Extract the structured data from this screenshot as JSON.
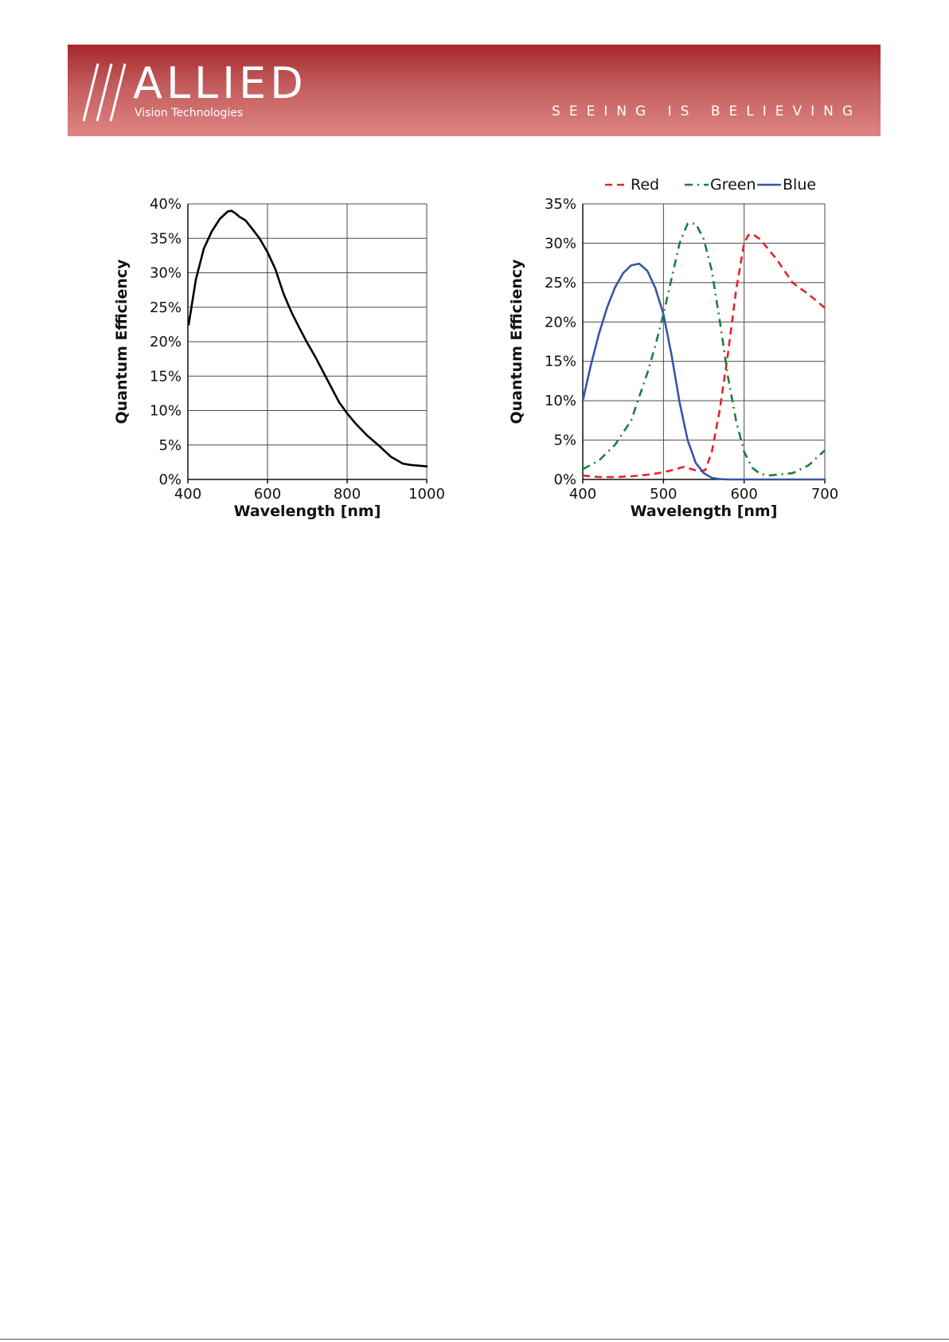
{
  "header": {
    "brand": "ALLIED",
    "brand_sub": "Vision Technologies",
    "tagline": "SEEING IS BELIEVING",
    "colors": {
      "top": "#a6282a",
      "bottom": "#de8583"
    }
  },
  "chart_data": [
    {
      "type": "line",
      "title": "",
      "xlabel": "Wavelength [nm]",
      "ylabel": "Quantum Efficiency",
      "xlim": [
        400,
        1000
      ],
      "ylim": [
        0,
        40
      ],
      "xticks": [
        "400",
        "600",
        "800",
        "1000"
      ],
      "yticks": [
        "0%",
        "5%",
        "10%",
        "15%",
        "20%",
        "25%",
        "30%",
        "35%",
        "40%"
      ],
      "grid": true,
      "series": [
        {
          "color": "#000000",
          "dash": "solid",
          "x": [
            402,
            420,
            440,
            460,
            480,
            500,
            510,
            520,
            530,
            545,
            560,
            580,
            600,
            620,
            640,
            660,
            680,
            700,
            720,
            750,
            780,
            800,
            820,
            850,
            880,
            910,
            940,
            960,
            980,
            1000
          ],
          "y": [
            22.5,
            29,
            33.5,
            36,
            37.8,
            38.9,
            39,
            38.6,
            38.1,
            37.6,
            36.5,
            35,
            33,
            30.5,
            27,
            24.3,
            22,
            19.8,
            17.8,
            14.5,
            11.2,
            9.6,
            8.2,
            6.4,
            4.9,
            3.3,
            2.3,
            2.1,
            2.0,
            1.9
          ]
        }
      ]
    },
    {
      "type": "line",
      "title": "",
      "xlabel": "Wavelength [nm]",
      "ylabel": "Quantum Efficiency",
      "xlim": [
        400,
        700
      ],
      "ylim": [
        0,
        35
      ],
      "xticks": [
        "400",
        "500",
        "600",
        "700"
      ],
      "yticks": [
        "0%",
        "5%",
        "10%",
        "15%",
        "20%",
        "25%",
        "30%",
        "35%"
      ],
      "grid": true,
      "legend": "top",
      "series": [
        {
          "name": "Red",
          "color": "#e8222b",
          "dash": "dash",
          "x": [
            400,
            420,
            440,
            460,
            480,
            500,
            515,
            525,
            535,
            545,
            552,
            560,
            570,
            580,
            590,
            600,
            605,
            610,
            620,
            640,
            660,
            680,
            700
          ],
          "y": [
            0.5,
            0.3,
            0.3,
            0.4,
            0.6,
            0.9,
            1.3,
            1.6,
            1.3,
            1.0,
            1.2,
            3.5,
            9,
            16,
            24,
            30,
            31,
            31.2,
            30.5,
            28,
            25,
            23.5,
            21.8
          ]
        },
        {
          "name": "Green",
          "color": "#1b7f3b",
          "dash": "dashdot",
          "x": [
            400,
            420,
            440,
            460,
            470,
            480,
            490,
            500,
            510,
            520,
            530,
            540,
            550,
            560,
            570,
            580,
            590,
            600,
            610,
            620,
            630,
            640,
            660,
            680,
            700
          ],
          "y": [
            1.3,
            2.4,
            4.4,
            7.5,
            10.5,
            13.5,
            17,
            21,
            25.5,
            30,
            32.5,
            32.5,
            30.5,
            26.5,
            20,
            13,
            7.5,
            3.5,
            1.5,
            0.7,
            0.5,
            0.6,
            0.8,
            1.8,
            3.7
          ]
        },
        {
          "name": "Blue",
          "color": "#3a54a7",
          "dash": "solid",
          "x": [
            400,
            410,
            420,
            430,
            440,
            450,
            460,
            470,
            480,
            490,
            500,
            510,
            520,
            530,
            540,
            550,
            560,
            570,
            580,
            600,
            650,
            700
          ],
          "y": [
            10,
            14.5,
            18.5,
            21.8,
            24.4,
            26.2,
            27.2,
            27.4,
            26.5,
            24.3,
            21,
            15.8,
            9.8,
            5,
            2.1,
            0.8,
            0.2,
            0.05,
            0,
            0,
            0,
            0
          ]
        }
      ]
    }
  ]
}
